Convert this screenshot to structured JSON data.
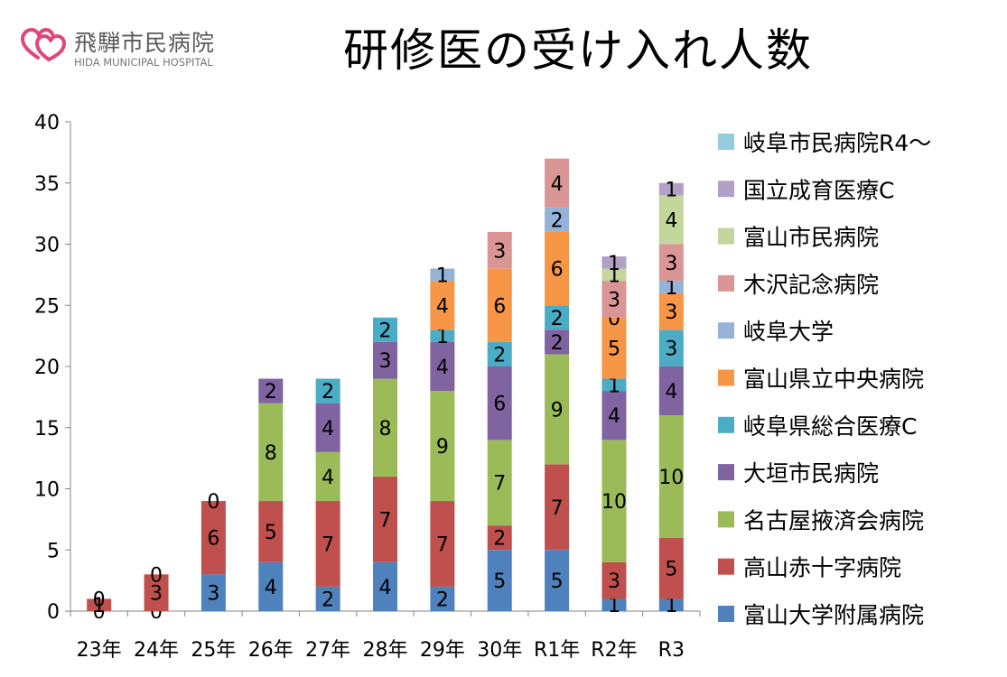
{
  "header": {
    "hospital_name": "飛騨市民病院",
    "hospital_sub": "HIDA MUNICIPAL HOSPITAL",
    "title": "研修医の受け入れ人数"
  },
  "chart_data": {
    "type": "bar",
    "stacked": true,
    "title": "研修医の受け入れ人数",
    "xlabel": "",
    "ylabel": "",
    "ylim": [
      0,
      40
    ],
    "yticks": [
      0,
      5,
      10,
      15,
      20,
      25,
      30,
      35,
      40
    ],
    "grid": false,
    "legend_position": "right",
    "categories": [
      "23年",
      "24年",
      "25年",
      "26年",
      "27年",
      "28年",
      "29年",
      "30年",
      "R1年",
      "R2年",
      "R3"
    ],
    "series": [
      {
        "name": "富山大学附属病院",
        "color": "#4f81bd",
        "values": [
          0,
          0,
          3,
          4,
          2,
          4,
          2,
          5,
          5,
          1,
          1
        ],
        "labels": [
          "0",
          "0",
          "3",
          "4",
          "2",
          "4",
          "2",
          "5",
          "5",
          "1",
          "1"
        ]
      },
      {
        "name": "高山赤十字病院",
        "color": "#c0504d",
        "values": [
          1,
          3,
          6,
          5,
          7,
          7,
          7,
          2,
          7,
          3,
          5
        ],
        "labels": [
          "1",
          "3",
          "6",
          "5",
          "7",
          "7",
          "7",
          "2",
          "7",
          "3",
          "5"
        ]
      },
      {
        "name": "名古屋掖済会病院",
        "color": "#9bbb59",
        "values": [
          0,
          0,
          0,
          8,
          4,
          8,
          9,
          7,
          9,
          10,
          10
        ],
        "labels": [
          "",
          "",
          "",
          "8",
          "4",
          "8",
          "9",
          "7",
          "9",
          "10",
          "10"
        ]
      },
      {
        "name": "大垣市民病院",
        "color": "#8064a2",
        "values": [
          0,
          0,
          0,
          2,
          4,
          3,
          4,
          6,
          2,
          4,
          4
        ],
        "labels": [
          "",
          "",
          "",
          "2",
          "4",
          "3",
          "4",
          "6",
          "2",
          "4",
          "4"
        ]
      },
      {
        "name": "岐阜県総合医療C",
        "color": "#4bacc6",
        "values": [
          0,
          0,
          0,
          0,
          2,
          2,
          1,
          2,
          2,
          1,
          3
        ],
        "labels": [
          "",
          "",
          "",
          "",
          "2",
          "2",
          "1",
          "2",
          "2",
          "1",
          "3"
        ]
      },
      {
        "name": "富山県立中央病院",
        "color": "#f79646",
        "values": [
          0,
          0,
          0,
          0,
          0,
          0,
          4,
          6,
          6,
          5,
          3
        ],
        "labels": [
          "",
          "",
          "",
          "",
          "",
          "",
          "4",
          "6",
          "6",
          "5",
          "3"
        ]
      },
      {
        "name": "岐阜大学",
        "color": "#95b3d7",
        "values": [
          0,
          0,
          0,
          0,
          0,
          0,
          1,
          0,
          2,
          0,
          1
        ],
        "labels": [
          "",
          "",
          "",
          "",
          "",
          "",
          "1",
          "",
          "2",
          "0",
          "1"
        ]
      },
      {
        "name": "木沢記念病院",
        "color": "#d99694",
        "values": [
          0,
          0,
          0,
          0,
          0,
          0,
          0,
          3,
          4,
          3,
          3
        ],
        "labels": [
          "",
          "",
          "",
          "",
          "",
          "",
          "",
          "3",
          "4",
          "3",
          "3"
        ]
      },
      {
        "name": "富山市民病院",
        "color": "#c3d69b",
        "values": [
          0,
          0,
          0,
          0,
          0,
          0,
          0,
          0,
          0,
          1,
          4
        ],
        "labels": [
          "",
          "",
          "",
          "",
          "",
          "",
          "",
          "",
          "",
          "1",
          "4"
        ]
      },
      {
        "name": "国立成育医療C",
        "color": "#b2a1c7",
        "values": [
          0,
          0,
          0,
          0,
          0,
          0,
          0,
          0,
          0,
          1,
          1
        ],
        "labels": [
          "",
          "",
          "",
          "",
          "",
          "",
          "",
          "",
          "",
          "1",
          "1"
        ]
      },
      {
        "name": "岐阜市民病院R4～",
        "color": "#93cddd",
        "values": [
          0,
          0,
          0,
          0,
          0,
          0,
          0,
          0,
          0,
          0,
          0
        ],
        "labels": [
          "",
          "",
          "",
          "",
          "",
          "",
          "",
          "",
          "",
          "",
          ""
        ]
      }
    ],
    "extra_labels": [
      {
        "category_index": 0,
        "at_value": 1,
        "text": "0"
      },
      {
        "category_index": 1,
        "at_value": 3,
        "text": "0"
      },
      {
        "category_index": 2,
        "at_value": 9,
        "text": "0"
      }
    ]
  }
}
